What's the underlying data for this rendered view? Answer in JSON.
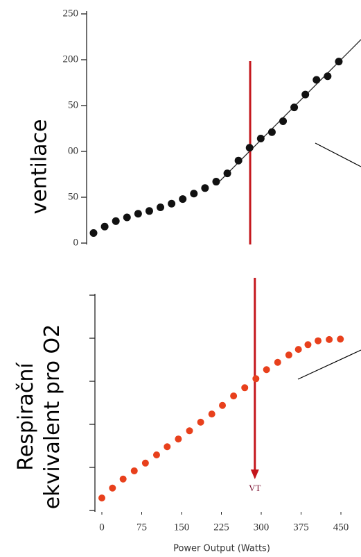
{
  "chart_data": [
    {
      "type": "scatter",
      "y_label": "ventilace",
      "color": "#111111",
      "x": [
        0,
        20,
        40,
        60,
        80,
        100,
        120,
        140,
        160,
        180,
        200,
        220,
        240,
        260,
        280,
        300,
        320,
        340,
        360,
        380,
        400,
        420,
        440
      ],
      "values": [
        11,
        18,
        24,
        28,
        32,
        35,
        39,
        43,
        48,
        54,
        60,
        67,
        76,
        90,
        104,
        114,
        121,
        133,
        148,
        162,
        178,
        182,
        198
      ],
      "xlim": [
        0,
        450
      ],
      "ylim": [
        0,
        250
      ],
      "yticks": [
        0,
        50,
        {
          "value": 100,
          "label": "00"
        },
        {
          "value": 150,
          "label": "50"
        },
        200,
        250
      ],
      "threshold": {
        "x": 281,
        "color": "#c4161c"
      }
    },
    {
      "type": "scatter",
      "y_label": "Respirační ekvivalent pro O2",
      "x_label": "Power Output (Watts)",
      "color": "#e8401c",
      "x": [
        0,
        20,
        40,
        61,
        82,
        103,
        123,
        144,
        165,
        186,
        207,
        227,
        248,
        269,
        290,
        310,
        331,
        352,
        370,
        388,
        407,
        428,
        449
      ],
      "values": [
        0.29,
        0.52,
        0.73,
        0.92,
        1.1,
        1.29,
        1.48,
        1.66,
        1.85,
        2.05,
        2.24,
        2.44,
        2.66,
        2.85,
        3.06,
        3.27,
        3.44,
        3.61,
        3.74,
        3.85,
        3.94,
        3.97,
        3.98
      ],
      "xlim": [
        0,
        450
      ],
      "ylim": [
        0,
        5
      ],
      "xticks": [
        0,
        75,
        150,
        225,
        300,
        375,
        450
      ],
      "yticks": [
        0,
        1,
        2,
        3,
        4,
        5
      ],
      "threshold": {
        "x": 288,
        "label": "VT",
        "color": "#c4161c"
      }
    }
  ]
}
